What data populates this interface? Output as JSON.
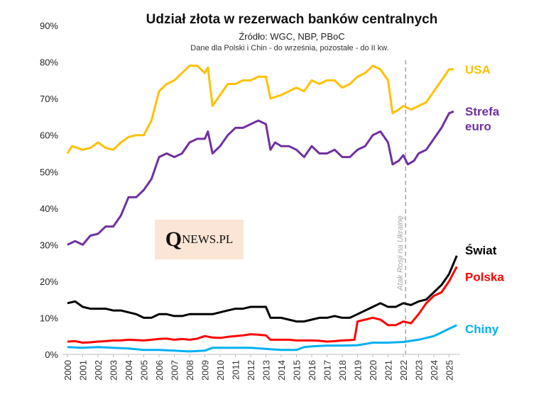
{
  "chart_data": {
    "type": "line",
    "title": "Udział złota w rezerwach banków centralnych",
    "subtitle": "Źródło: WGC, NBP, PBoC",
    "note": "Dane dla Polski i Chin - do września, pozostałe  - do II kw.",
    "ylim": [
      0,
      90
    ],
    "yticks": [
      "0%",
      "10%",
      "20%",
      "30%",
      "40%",
      "50%",
      "60%",
      "70%",
      "80%",
      "90%"
    ],
    "xlim": [
      2000,
      2025.75
    ],
    "xticks": [
      "2000",
      "2001",
      "2002",
      "2003",
      "2004",
      "2005",
      "2006",
      "2007",
      "2008",
      "2009",
      "2010",
      "2011",
      "2012",
      "2013",
      "2014",
      "2015",
      "2016",
      "2017",
      "2018",
      "2019",
      "2020",
      "2021",
      "2022",
      "2023",
      "2024",
      "2025"
    ],
    "annotation": {
      "text": "Atak Rosji na Ukrainę",
      "x": 2022.15
    },
    "series": [
      {
        "name": "USA",
        "label_lines": [
          "USA"
        ],
        "color": "#ffc000",
        "x": [
          2000,
          2000.3,
          2001,
          2001.5,
          2002,
          2002.5,
          2003,
          2003.5,
          2004,
          2004.5,
          2005,
          2005.5,
          2006,
          2006.5,
          2007,
          2007.5,
          2008,
          2008.5,
          2009,
          2009.2,
          2009.5,
          2010,
          2010.5,
          2011,
          2011.5,
          2012,
          2012.5,
          2013,
          2013.3,
          2014,
          2014.5,
          2015,
          2015.5,
          2016,
          2016.5,
          2017,
          2017.5,
          2018,
          2018.5,
          2019,
          2019.5,
          2020,
          2020.5,
          2021,
          2021.3,
          2021.7,
          2022,
          2022.5,
          2023,
          2023.5,
          2024,
          2024.5,
          2025,
          2025.3
        ],
        "y": [
          55,
          57,
          56,
          56.5,
          58,
          56.5,
          56,
          58,
          59.5,
          60,
          60,
          64,
          72,
          74,
          75,
          77,
          79,
          79,
          77,
          78.5,
          68,
          71,
          74,
          74,
          75,
          75,
          76,
          76,
          70,
          71,
          72,
          73,
          72,
          75,
          74,
          75,
          75,
          73,
          74,
          76,
          77,
          79,
          78,
          75,
          66,
          67,
          68,
          67,
          68,
          69,
          72,
          75,
          78,
          78
        ]
      },
      {
        "name": "Strefa euro",
        "label_lines": [
          "Strefa",
          "euro"
        ],
        "color": "#7030a0",
        "x": [
          2000,
          2000.5,
          2001,
          2001.5,
          2002,
          2002.5,
          2003,
          2003.5,
          2004,
          2004.5,
          2005,
          2005.5,
          2006,
          2006.5,
          2007,
          2007.5,
          2008,
          2008.5,
          2009,
          2009.2,
          2009.5,
          2010,
          2010.5,
          2011,
          2011.5,
          2012,
          2012.5,
          2013,
          2013.3,
          2013.6,
          2014,
          2014.5,
          2015,
          2015.5,
          2016,
          2016.5,
          2017,
          2017.5,
          2018,
          2018.5,
          2019,
          2019.5,
          2020,
          2020.5,
          2021,
          2021.3,
          2021.7,
          2022,
          2022.3,
          2022.7,
          2023,
          2023.5,
          2024,
          2024.5,
          2025,
          2025.3
        ],
        "y": [
          30,
          31,
          30,
          32.5,
          33,
          35,
          35,
          38,
          43,
          43,
          45,
          48,
          54,
          55,
          54,
          55,
          58,
          59,
          59,
          61,
          55,
          57,
          60,
          62,
          62,
          63,
          64,
          63,
          56,
          58,
          57,
          57,
          56,
          54,
          57,
          55,
          55,
          56,
          54,
          54,
          56,
          57,
          60,
          61,
          58,
          52,
          53,
          54.5,
          52,
          53,
          55,
          56,
          59,
          62,
          66,
          66.5
        ]
      },
      {
        "name": "Świat",
        "label_lines": [
          "Świat"
        ],
        "color": "#000000",
        "x": [
          2000,
          2000.5,
          2001,
          2001.5,
          2002,
          2002.5,
          2003,
          2003.5,
          2004,
          2004.5,
          2005,
          2005.5,
          2006,
          2006.5,
          2007,
          2007.5,
          2008,
          2008.5,
          2009,
          2009.5,
          2010,
          2010.5,
          2011,
          2011.5,
          2012,
          2012.5,
          2013,
          2013.3,
          2014,
          2014.5,
          2015,
          2015.5,
          2016,
          2016.5,
          2017,
          2017.5,
          2018,
          2018.5,
          2019,
          2019.5,
          2020,
          2020.5,
          2021,
          2021.5,
          2022,
          2022.5,
          2023,
          2023.5,
          2024,
          2024.5,
          2025,
          2025.5
        ],
        "y": [
          14,
          14.5,
          13,
          12.5,
          12.5,
          12.5,
          12,
          12,
          11.5,
          11,
          10,
          10,
          11,
          11,
          10.5,
          10.5,
          11,
          11,
          11,
          11,
          11.5,
          12,
          12.5,
          12.5,
          13,
          13,
          13,
          10,
          10,
          9.5,
          9,
          9,
          9.5,
          10,
          10,
          10.5,
          10,
          10,
          11,
          12,
          13,
          14,
          13,
          13,
          14,
          13.5,
          14.5,
          15,
          17,
          19,
          22,
          27
        ]
      },
      {
        "name": "Polska",
        "label_lines": [
          "Polska"
        ],
        "color": "#ff0000",
        "x": [
          2000,
          2000.5,
          2001,
          2001.5,
          2002,
          2002.5,
          2003,
          2003.5,
          2004,
          2004.5,
          2005,
          2005.5,
          2006,
          2006.5,
          2007,
          2007.5,
          2008,
          2008.5,
          2009,
          2009.5,
          2010,
          2010.5,
          2011,
          2011.5,
          2012,
          2012.5,
          2013,
          2013.3,
          2014,
          2014.5,
          2015,
          2015.5,
          2016,
          2016.5,
          2017,
          2017.5,
          2018,
          2018.5,
          2018.8,
          2019,
          2019.5,
          2020,
          2020.5,
          2021,
          2021.5,
          2022,
          2022.5,
          2023,
          2023.5,
          2024,
          2024.5,
          2025,
          2025.5
        ],
        "y": [
          3.5,
          3.6,
          3.2,
          3.3,
          3.5,
          3.6,
          3.8,
          3.8,
          4,
          3.9,
          3.8,
          4,
          4.2,
          4.3,
          4,
          4.2,
          4,
          4.3,
          5,
          4.6,
          4.5,
          4.8,
          5,
          5.2,
          5.5,
          5.4,
          5.2,
          4,
          4,
          4,
          3.8,
          3.8,
          3.8,
          3.7,
          3.5,
          3.6,
          3.8,
          3.9,
          4,
          9,
          9.5,
          10,
          9.5,
          8,
          8,
          9,
          8.5,
          11,
          14,
          16,
          17,
          20,
          24
        ]
      },
      {
        "name": "Chiny",
        "label_lines": [
          "Chiny"
        ],
        "color": "#00b0f0",
        "x": [
          2000,
          2001,
          2002,
          2003,
          2004,
          2005,
          2006,
          2007,
          2008,
          2009,
          2009.5,
          2010,
          2011,
          2012,
          2013,
          2014,
          2015,
          2015.5,
          2016,
          2017,
          2018,
          2019,
          2020,
          2021,
          2022,
          2023,
          2024,
          2024.5,
          2025,
          2025.5
        ],
        "y": [
          2,
          1.8,
          2,
          1.8,
          1.6,
          1.2,
          1.2,
          1,
          0.8,
          1,
          1.8,
          1.8,
          1.8,
          1.8,
          1.5,
          1.2,
          1.2,
          2,
          2.2,
          2.4,
          2.4,
          2.5,
          3.2,
          3.2,
          3.4,
          4,
          5,
          6,
          7,
          8
        ]
      }
    ]
  },
  "logo": {
    "q": "Q",
    "rest": "NEWS",
    "suffix": ".PL"
  }
}
